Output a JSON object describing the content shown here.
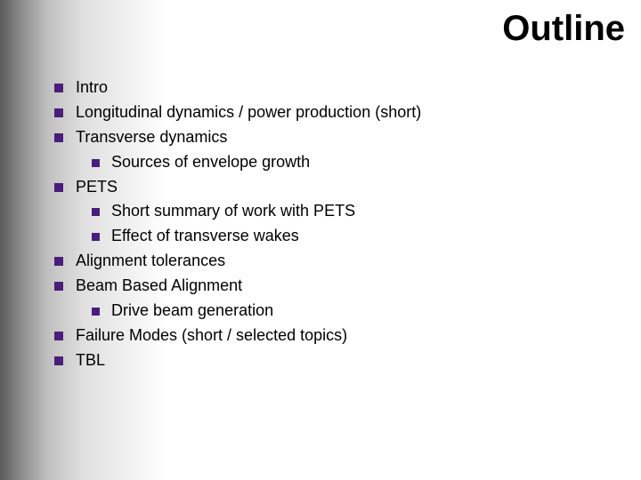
{
  "title": "Outline",
  "bullet_color": "#4a1d7a",
  "text_color": "#000000",
  "background_color": "#ffffff",
  "gradient_from": "#5b5b5b",
  "gradient_to": "#ffffff",
  "title_fontsize": 40,
  "body_fontsize": 18,
  "items": [
    {
      "label": "Intro"
    },
    {
      "label": "Longitudinal dynamics / power production  (short)"
    },
    {
      "label": "Transverse dynamics",
      "children": [
        {
          "label": "Sources of envelope growth"
        }
      ]
    },
    {
      "label": "PETS",
      "children": [
        {
          "label": "Short summary of work with PETS"
        },
        {
          "label": "Effect of transverse wakes"
        }
      ]
    },
    {
      "label": "Alignment tolerances"
    },
    {
      "label": "Beam Based Alignment",
      "children": [
        {
          "label": "Drive beam generation"
        }
      ]
    },
    {
      "label": "Failure Modes (short / selected topics)"
    },
    {
      "label": "TBL"
    }
  ]
}
